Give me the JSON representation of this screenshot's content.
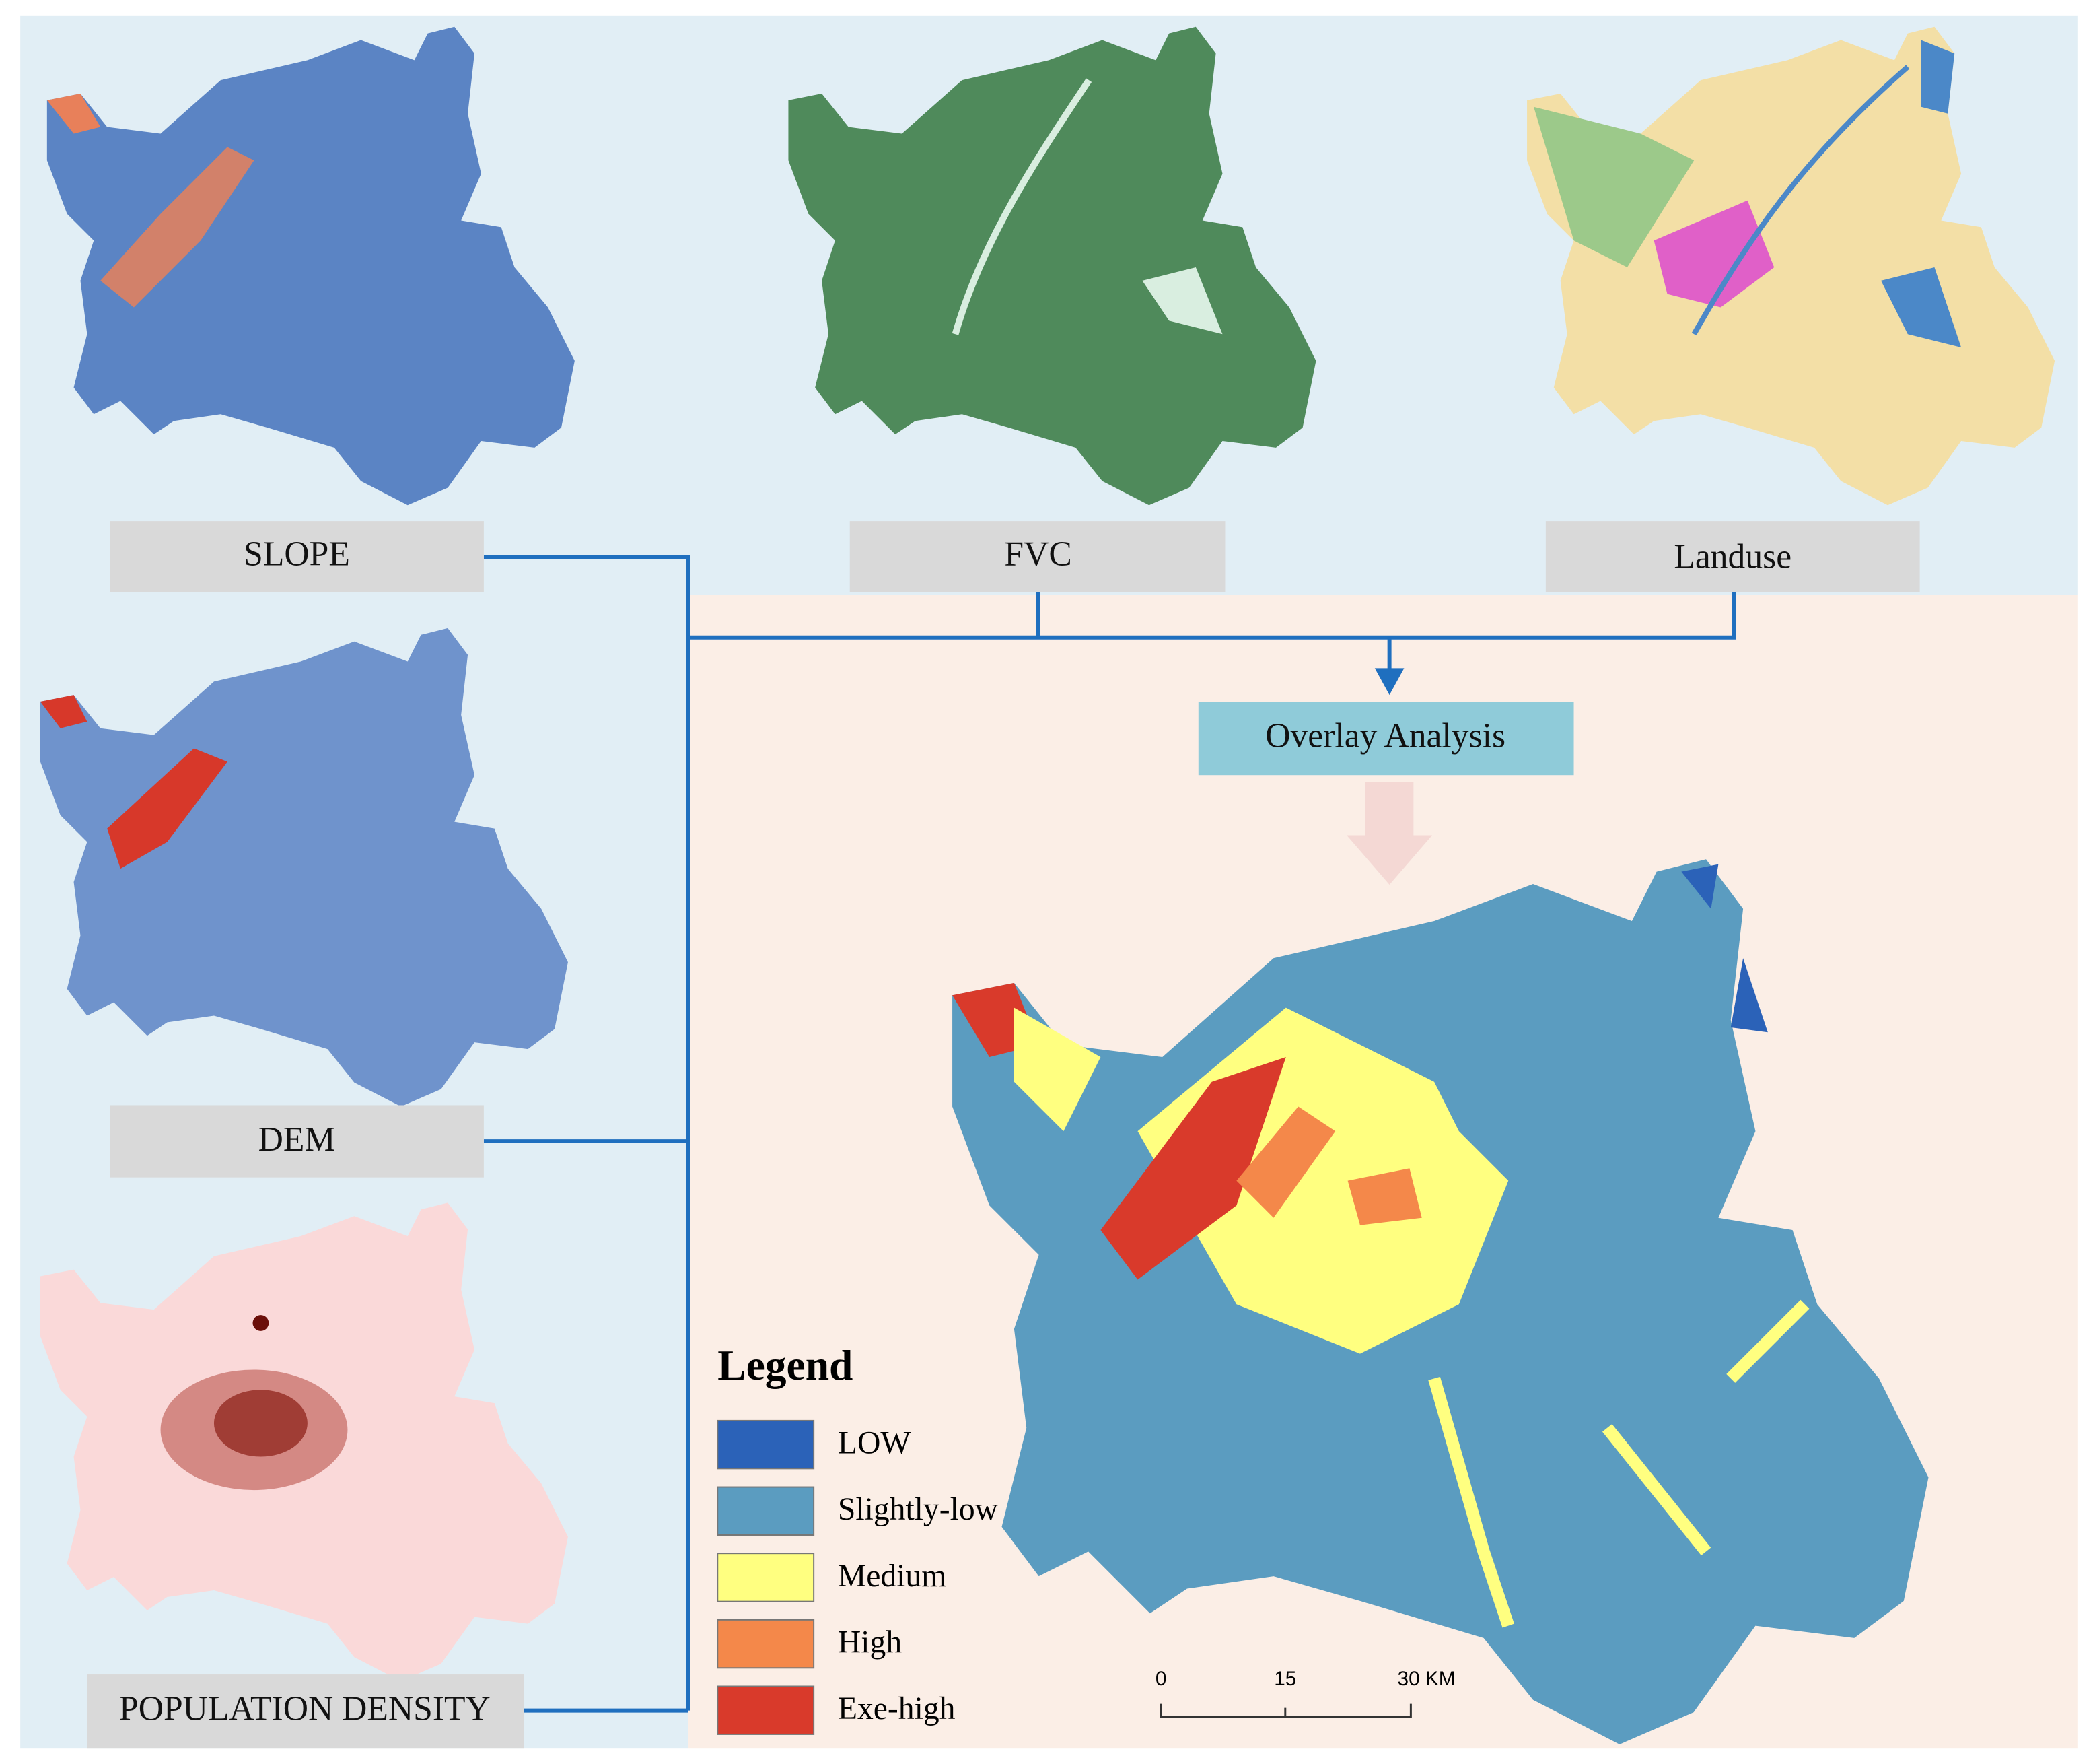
{
  "panels": {
    "slope": "SLOPE",
    "fvc": "FVC",
    "landuse": "Landuse",
    "dem": "DEM",
    "population": "POPULATION DENSITY"
  },
  "process": "Overlay Analysis",
  "legend": {
    "title": "Legend",
    "items": [
      {
        "name": "LOW",
        "color": "#2b62b8"
      },
      {
        "name": "Slightly-low",
        "color": "#5b9cc0"
      },
      {
        "name": "Medium",
        "color": "#ffff80"
      },
      {
        "name": "High",
        "color": "#f4884a"
      },
      {
        "name": "Exe-high",
        "color": "#d93a2b"
      }
    ]
  },
  "scale_bar": {
    "labels": [
      "0",
      "15",
      "30 KM"
    ]
  }
}
